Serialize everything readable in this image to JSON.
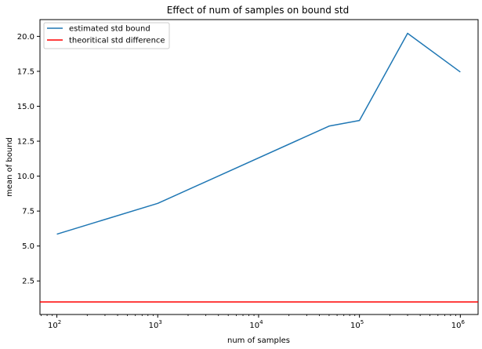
{
  "chart_data": {
    "type": "line",
    "title": "Effect of num of samples on bound std",
    "xlabel": "num of samples",
    "ylabel": "mean of bound",
    "xscale": "log",
    "xlim": [
      68,
      1500000
    ],
    "ylim": [
      0.1,
      21.2
    ],
    "grid": false,
    "legend_position": "top-left",
    "yticks": [
      "2.5",
      "5.0",
      "7.5",
      "10.0",
      "12.5",
      "15.0",
      "17.5",
      "20.0"
    ],
    "yticks_values": [
      2.5,
      5.0,
      7.5,
      10.0,
      12.5,
      15.0,
      17.5,
      20.0
    ],
    "xticks_values": [
      100,
      1000,
      10000,
      100000,
      1000000
    ],
    "xticks_exponents": [
      "2",
      "3",
      "4",
      "5",
      "6"
    ],
    "xticks_base": "10",
    "series": [
      {
        "name": "estimated std bound",
        "color": "#1f77b4",
        "x": [
          100,
          1000,
          50000,
          100000,
          300000,
          1000000
        ],
        "y": [
          5.85,
          8.05,
          13.58,
          13.98,
          20.22,
          17.45
        ]
      },
      {
        "name": "theoritical std difference",
        "color": "#ff0000",
        "type": "hline",
        "y": 1.0
      }
    ]
  }
}
